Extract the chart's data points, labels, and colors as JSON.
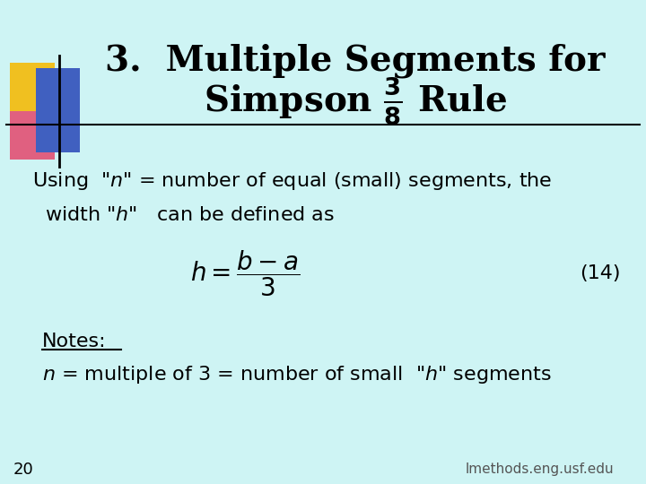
{
  "background_color": "#cef4f4",
  "title_line1": "3.  Multiple Segments for",
  "title_fontsize": 28,
  "equation_number": "(14)",
  "notes_label": "Notes:",
  "page_number": "20",
  "footer_text": "lmethods.eng.usf.edu",
  "colors": {
    "text": "#000000",
    "title": "#000000",
    "footer": "#555555"
  },
  "logo_colors": {
    "yellow": "#f0c020",
    "pink": "#e06080",
    "blue": "#4060c0"
  }
}
